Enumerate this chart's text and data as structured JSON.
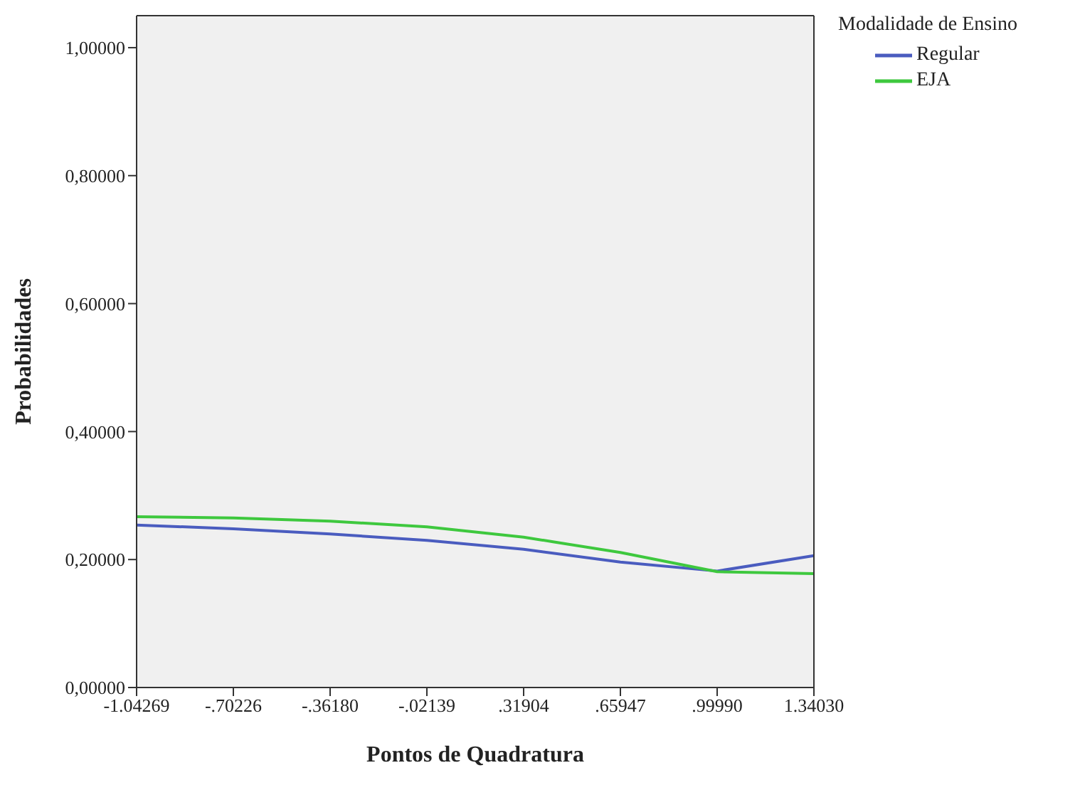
{
  "chart_data": {
    "type": "line",
    "xlabel": "Pontos de Quadratura",
    "ylabel": "Probabilidades",
    "legend_title": "Modalidade de Ensino",
    "categories": [
      "-1.04269",
      "-.70226",
      "-.36180",
      "-.02139",
      ".31904",
      ".65947",
      ".99990",
      "1.34030"
    ],
    "series": [
      {
        "name": "Regular",
        "color": "#4a5cbf",
        "values": [
          0.254,
          0.248,
          0.24,
          0.23,
          0.216,
          0.196,
          0.182,
          0.206
        ]
      },
      {
        "name": "EJA",
        "color": "#3ec83e",
        "values": [
          0.267,
          0.265,
          0.26,
          0.251,
          0.235,
          0.211,
          0.181,
          0.178
        ]
      }
    ],
    "ylim": [
      0,
      1.05
    ],
    "yticks": [
      {
        "value": 0,
        "label": "0,00000"
      },
      {
        "value": 0.2,
        "label": "0,20000"
      },
      {
        "value": 0.4,
        "label": "0,40000"
      },
      {
        "value": 0.6,
        "label": "0,60000"
      },
      {
        "value": 0.8,
        "label": "0,80000"
      },
      {
        "value": 1,
        "label": "1,00000"
      }
    ],
    "legend": "top right",
    "marker": "none",
    "line_style": "solid"
  }
}
